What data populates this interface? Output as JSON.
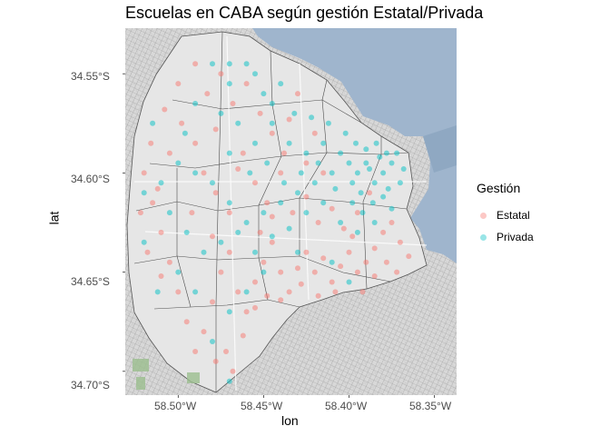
{
  "chart_data": {
    "type": "scatter",
    "title": "Escuelas en CABA según gestión Estatal/Privada",
    "xlabel": "lon",
    "ylabel": "lat",
    "xlim": [
      -58.531,
      -58.337
    ],
    "ylim": [
      -34.712,
      -34.527
    ],
    "x_ticks": [
      "58.50°W",
      "58.45°W",
      "58.40°W",
      "58.35°W"
    ],
    "y_ticks": [
      "34.55°S",
      "34.60°S",
      "34.65°S",
      "34.70°S"
    ],
    "legend": {
      "title": "Gestión",
      "position": "right",
      "entries": [
        {
          "label": "Estatal",
          "color": "#F8766D"
        },
        {
          "label": "Privada",
          "color": "#00BFC4"
        }
      ]
    },
    "basemap": "street-map-tiles",
    "series": [
      {
        "name": "Estatal",
        "color": "#F8766D",
        "points": [
          [
            -58.52,
            -34.6
          ],
          [
            -58.515,
            -34.615
          ],
          [
            -58.51,
            -34.63
          ],
          [
            -58.505,
            -34.645
          ],
          [
            -58.5,
            -34.66
          ],
          [
            -58.495,
            -34.675
          ],
          [
            -58.49,
            -34.69
          ],
          [
            -58.485,
            -34.68
          ],
          [
            -58.48,
            -34.665
          ],
          [
            -58.475,
            -34.65
          ],
          [
            -58.47,
            -34.64
          ],
          [
            -58.465,
            -34.66
          ],
          [
            -58.46,
            -34.67
          ],
          [
            -58.455,
            -34.655
          ],
          [
            -58.45,
            -34.645
          ],
          [
            -58.445,
            -34.635
          ],
          [
            -58.44,
            -34.65
          ],
          [
            -58.435,
            -34.66
          ],
          [
            -58.43,
            -34.648
          ],
          [
            -58.425,
            -34.64
          ],
          [
            -58.42,
            -34.65
          ],
          [
            -58.415,
            -34.643
          ],
          [
            -58.41,
            -34.655
          ],
          [
            -58.405,
            -34.647
          ],
          [
            -58.4,
            -34.64
          ],
          [
            -58.395,
            -34.65
          ],
          [
            -58.39,
            -34.645
          ],
          [
            -58.385,
            -34.638
          ],
          [
            -58.38,
            -34.63
          ],
          [
            -58.375,
            -34.625
          ],
          [
            -58.37,
            -34.635
          ],
          [
            -58.498,
            -34.575
          ],
          [
            -58.49,
            -34.585
          ],
          [
            -58.485,
            -34.6
          ],
          [
            -58.478,
            -34.61
          ],
          [
            -58.47,
            -34.62
          ],
          [
            -58.462,
            -34.59
          ],
          [
            -58.455,
            -34.605
          ],
          [
            -58.448,
            -34.615
          ],
          [
            -58.44,
            -34.6
          ],
          [
            -58.433,
            -34.62
          ],
          [
            -58.425,
            -34.612
          ],
          [
            -58.418,
            -34.625
          ],
          [
            -58.41,
            -34.618
          ],
          [
            -58.403,
            -34.628
          ],
          [
            -58.395,
            -34.62
          ],
          [
            -58.388,
            -34.61
          ],
          [
            -58.483,
            -34.56
          ],
          [
            -58.475,
            -34.55
          ],
          [
            -58.468,
            -34.565
          ],
          [
            -58.46,
            -34.555
          ],
          [
            -58.452,
            -34.57
          ],
          [
            -58.445,
            -34.58
          ],
          [
            -58.505,
            -34.59
          ],
          [
            -58.512,
            -34.608
          ],
          [
            -58.492,
            -34.62
          ],
          [
            -58.48,
            -34.632
          ],
          [
            -58.472,
            -34.69
          ],
          [
            -58.468,
            -34.7
          ],
          [
            -58.478,
            -34.695
          ],
          [
            -58.462,
            -34.682
          ],
          [
            -58.455,
            -34.668
          ],
          [
            -58.448,
            -34.662
          ],
          [
            -58.44,
            -34.664
          ],
          [
            -58.428,
            -34.656
          ],
          [
            -58.418,
            -34.662
          ],
          [
            -58.408,
            -34.66
          ],
          [
            -58.5,
            -34.555
          ],
          [
            -58.508,
            -34.568
          ],
          [
            -58.438,
            -34.59
          ],
          [
            -58.425,
            -34.595
          ],
          [
            -58.415,
            -34.6
          ],
          [
            -58.435,
            -34.573
          ],
          [
            -58.43,
            -34.56
          ],
          [
            -58.42,
            -34.58
          ],
          [
            -58.49,
            -34.545
          ],
          [
            -58.478,
            -34.578
          ],
          [
            -58.465,
            -34.598
          ],
          [
            -58.452,
            -34.63
          ],
          [
            -58.445,
            -34.622
          ],
          [
            -58.398,
            -34.632
          ],
          [
            -58.392,
            -34.66
          ],
          [
            -58.385,
            -34.652
          ],
          [
            -58.378,
            -34.645
          ],
          [
            -58.372,
            -34.65
          ],
          [
            -58.365,
            -34.642
          ],
          [
            -58.516,
            -34.585
          ],
          [
            -58.522,
            -34.62
          ],
          [
            -58.518,
            -34.64
          ],
          [
            -58.51,
            -34.652
          ]
        ]
      },
      {
        "name": "Privada",
        "color": "#00BFC4",
        "points": [
          [
            -58.48,
            -34.545
          ],
          [
            -58.47,
            -34.555
          ],
          [
            -58.46,
            -34.545
          ],
          [
            -58.45,
            -34.56
          ],
          [
            -58.44,
            -34.555
          ],
          [
            -58.475,
            -34.57
          ],
          [
            -58.465,
            -34.575
          ],
          [
            -58.455,
            -34.585
          ],
          [
            -58.445,
            -34.575
          ],
          [
            -58.435,
            -34.585
          ],
          [
            -58.425,
            -34.59
          ],
          [
            -58.415,
            -34.585
          ],
          [
            -58.405,
            -34.59
          ],
          [
            -58.4,
            -34.595
          ],
          [
            -58.395,
            -34.6
          ],
          [
            -58.39,
            -34.595
          ],
          [
            -58.385,
            -34.605
          ],
          [
            -58.38,
            -34.6
          ],
          [
            -58.375,
            -34.595
          ],
          [
            -58.37,
            -34.605
          ],
          [
            -58.398,
            -34.605
          ],
          [
            -58.393,
            -34.61
          ],
          [
            -58.388,
            -34.598
          ],
          [
            -58.382,
            -34.592
          ],
          [
            -58.377,
            -34.608
          ],
          [
            -58.41,
            -34.6
          ],
          [
            -58.42,
            -34.605
          ],
          [
            -58.43,
            -34.61
          ],
          [
            -58.44,
            -34.615
          ],
          [
            -58.45,
            -34.62
          ],
          [
            -58.46,
            -34.625
          ],
          [
            -58.47,
            -34.615
          ],
          [
            -58.48,
            -34.605
          ],
          [
            -58.49,
            -34.6
          ],
          [
            -58.5,
            -34.595
          ],
          [
            -58.51,
            -34.605
          ],
          [
            -58.505,
            -34.62
          ],
          [
            -58.495,
            -34.63
          ],
          [
            -58.485,
            -34.64
          ],
          [
            -58.475,
            -34.635
          ],
          [
            -58.465,
            -34.63
          ],
          [
            -58.455,
            -34.64
          ],
          [
            -58.445,
            -34.632
          ],
          [
            -58.435,
            -34.628
          ],
          [
            -58.425,
            -34.62
          ],
          [
            -58.415,
            -34.615
          ],
          [
            -58.405,
            -34.625
          ],
          [
            -58.395,
            -34.63
          ],
          [
            -58.385,
            -34.625
          ],
          [
            -58.375,
            -34.618
          ],
          [
            -58.5,
            -34.65
          ],
          [
            -58.49,
            -34.66
          ],
          [
            -58.52,
            -34.635
          ],
          [
            -58.512,
            -34.66
          ],
          [
            -58.47,
            -34.59
          ],
          [
            -58.458,
            -34.6
          ],
          [
            -58.448,
            -34.595
          ],
          [
            -58.438,
            -34.605
          ],
          [
            -58.428,
            -34.6
          ],
          [
            -58.418,
            -34.595
          ],
          [
            -58.408,
            -34.608
          ],
          [
            -58.398,
            -34.615
          ],
          [
            -58.392,
            -34.62
          ],
          [
            -58.386,
            -34.615
          ],
          [
            -58.38,
            -34.612
          ],
          [
            -58.49,
            -34.565
          ],
          [
            -58.496,
            -34.58
          ],
          [
            -58.47,
            -34.545
          ],
          [
            -58.455,
            -34.55
          ],
          [
            -58.445,
            -34.565
          ],
          [
            -58.432,
            -34.57
          ],
          [
            -58.422,
            -34.572
          ],
          [
            -58.412,
            -34.575
          ],
          [
            -58.402,
            -34.58
          ],
          [
            -58.396,
            -34.585
          ],
          [
            -58.39,
            -34.588
          ],
          [
            -58.384,
            -34.585
          ],
          [
            -58.378,
            -34.59
          ],
          [
            -58.372,
            -34.59
          ],
          [
            -58.368,
            -34.598
          ],
          [
            -58.47,
            -34.67
          ],
          [
            -58.46,
            -34.66
          ],
          [
            -58.45,
            -34.65
          ],
          [
            -58.43,
            -34.64
          ],
          [
            -58.41,
            -34.645
          ],
          [
            -58.4,
            -34.655
          ],
          [
            -58.48,
            -34.685
          ],
          [
            -58.47,
            -34.705
          ],
          [
            -58.515,
            -34.575
          ],
          [
            -58.52,
            -34.61
          ]
        ]
      }
    ]
  }
}
